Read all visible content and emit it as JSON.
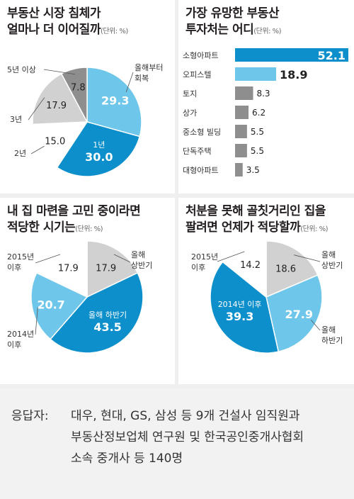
{
  "charts": {
    "c1": {
      "title1": "부동산 시장 침체가",
      "title2": "얼마나 더 이어질까",
      "unit": "(단위: %)"
    },
    "c2": {
      "title1": "가장 유망한 부동산",
      "title2": "투자처는 어디",
      "unit": "(단위: %)"
    },
    "c3": {
      "title1": "내 집 마련을 고민 중이라면",
      "title2": "적당한 시기는",
      "unit": "(단위: %)"
    },
    "c4": {
      "title1": "처분을 못해 골칫거리인 집을",
      "title2": "팔려면 언제가 적당할까",
      "unit": "(단위: %)"
    }
  },
  "chart_data": [
    {
      "type": "pie",
      "title": "부동산 시장 침체가 얼마나 더 이어질까",
      "unit": "%",
      "slices": [
        {
          "label": "올해부터 회복",
          "value": 29.3,
          "color": "#6ec6ea"
        },
        {
          "label": "1년",
          "value": 30.0,
          "color": "#0d8fcc"
        },
        {
          "label": "2년",
          "value": 15.0,
          "color": "#ffffff"
        },
        {
          "label": "3년",
          "value": 17.9,
          "color": "#d1d1d1"
        },
        {
          "label": "5년 이상",
          "value": 7.8,
          "color": "#8e8e8e"
        }
      ]
    },
    {
      "type": "bar",
      "title": "가장 유망한 부동산 투자처는 어디",
      "unit": "%",
      "categories": [
        "소형아파트",
        "오피스텔",
        "토지",
        "상가",
        "중소형 빌딩",
        "단독주택",
        "대형아파트"
      ],
      "values": [
        52.1,
        18.9,
        8.3,
        6.2,
        5.5,
        5.5,
        3.5
      ],
      "colors": [
        "#0d8fcc",
        "#6ec6ea",
        "#8e8e8e",
        "#8e8e8e",
        "#8e8e8e",
        "#8e8e8e",
        "#8e8e8e"
      ],
      "xlim": [
        0,
        52.1
      ]
    },
    {
      "type": "pie",
      "title": "내 집 마련을 고민 중이라면 적당한 시기는",
      "unit": "%",
      "slices": [
        {
          "label": "올해 상반기",
          "value": 17.9,
          "color": "#d1d1d1"
        },
        {
          "label": "올해 하반기",
          "value": 43.5,
          "color": "#0d8fcc"
        },
        {
          "label": "2014년 이후",
          "value": 20.7,
          "color": "#6ec6ea"
        },
        {
          "label": "2015년 이후",
          "value": 17.9,
          "color": "#ffffff"
        }
      ]
    },
    {
      "type": "pie",
      "title": "처분을 못해 골칫거리인 집을 팔려면 언제가 적당할까",
      "unit": "%",
      "slices": [
        {
          "label": "올해 상반기",
          "value": 18.6,
          "color": "#d1d1d1"
        },
        {
          "label": "올해 하반기",
          "value": 27.9,
          "color": "#6ec6ea"
        },
        {
          "label": "2014년 이후",
          "value": 39.3,
          "color": "#0d8fcc"
        },
        {
          "label": "2015년 이후",
          "value": 14.2,
          "color": "#ffffff"
        }
      ]
    }
  ],
  "labels": {
    "c1": {
      "s0": [
        "올해부터",
        "회복"
      ],
      "s1": "1년",
      "s2": "2년",
      "s3": "3년",
      "s4": "5년 이상"
    },
    "c3": {
      "s0": [
        "올해",
        "상반기"
      ],
      "s1": "올해 하반기",
      "s2": [
        "2014년",
        "이후"
      ],
      "s3": [
        "2015년",
        "이후"
      ]
    },
    "c4": {
      "s0": [
        "올해",
        "상반기"
      ],
      "s1": [
        "올해",
        "하반기"
      ],
      "s2": "2014년 이후",
      "s3": [
        "2015년",
        "이후"
      ]
    }
  },
  "footer": {
    "label": "응답자:",
    "line1": "대우, 현대, GS, 삼성 등 9개 건설사 임직원과",
    "line2": "부동산정보업체 연구원 및 한국공인중개사협회",
    "line3": "소속 중개사 등 140명"
  }
}
